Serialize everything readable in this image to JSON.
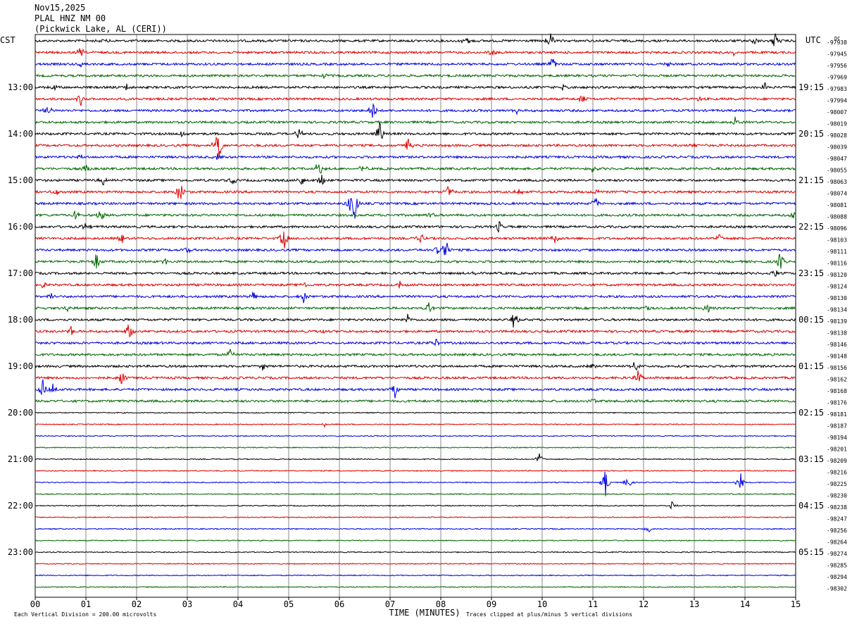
{
  "header": {
    "date": "Nov15,2025",
    "station": "PLAL HNZ NM 00",
    "location": "(Pickwick Lake, AL (CERI))"
  },
  "labels": {
    "left_timezone": "CST",
    "right_timezone": "UTC",
    "dc_label": "DC",
    "x_axis_title": "TIME (MINUTES)",
    "vertical_division": "Each Vertical Division =  200.00 microvolts",
    "clip_note": "Traces clipped at plus/minus 5 vertical divisions"
  },
  "chart_data": {
    "type": "line",
    "title": "PLAL HNZ NM 00",
    "xlabel": "TIME (MINUTES)",
    "xlim": [
      0,
      15
    ],
    "x_ticks": [
      "00",
      "01",
      "02",
      "03",
      "04",
      "05",
      "06",
      "07",
      "08",
      "09",
      "10",
      "11",
      "12",
      "13",
      "14",
      "15"
    ],
    "trace_colors": [
      "#000000",
      "#dd0000",
      "#0000dd",
      "#006600"
    ],
    "left_hour_labels": [
      "13:00",
      "14:00",
      "15:00",
      "16:00",
      "17:00",
      "18:00",
      "19:00",
      "20:00",
      "21:00",
      "22:00",
      "23:00"
    ],
    "right_hour_labels": [
      "19:15",
      "20:15",
      "21:15",
      "22:15",
      "23:15",
      "00:15",
      "01:15",
      "02:15",
      "03:15",
      "04:15",
      "05:15"
    ],
    "dc_offsets": [
      "-97938",
      "-97945",
      "-97956",
      "-97969",
      "-97983",
      "-97994",
      "-98007",
      "-98019",
      "-98028",
      "-98039",
      "-98047",
      "-98055",
      "-98063",
      "-98074",
      "-98081",
      "-98088",
      "-98096",
      "-98103",
      "-98111",
      "-98116",
      "-98120",
      "-98124",
      "-98130",
      "-98134",
      "-98139",
      "-98138",
      "-98146",
      "-98148",
      "-98156",
      "-98162",
      "-98168",
      "-98176",
      "-98181",
      "-98187",
      "-98194",
      "-98201",
      "-98209",
      "-98216",
      "-98225",
      "-98230",
      "-98238",
      "-98247",
      "-98256",
      "-98264",
      "-98274",
      "-98285",
      "-98294",
      "-98302"
    ],
    "events": [
      {
        "trace": 0,
        "minute": 10.15,
        "amp": 14
      },
      {
        "trace": 0,
        "minute": 14.6,
        "amp": 20
      },
      {
        "trace": 0,
        "minute": 1.35,
        "amp": 6
      },
      {
        "trace": 0,
        "minute": 8.5,
        "amp": 10
      },
      {
        "trace": 0,
        "minute": 14.2,
        "amp": 6
      },
      {
        "trace": 1,
        "minute": 0.9,
        "amp": 9
      },
      {
        "trace": 1,
        "minute": 9.0,
        "amp": 8
      },
      {
        "trace": 1,
        "minute": 13.8,
        "amp": 7
      },
      {
        "trace": 2,
        "minute": 0.9,
        "amp": 5
      },
      {
        "trace": 2,
        "minute": 12.5,
        "amp": 5
      },
      {
        "trace": 2,
        "minute": 10.2,
        "amp": 10
      },
      {
        "trace": 3,
        "minute": 5.7,
        "amp": 4
      },
      {
        "trace": 4,
        "minute": 0.4,
        "amp": 5
      },
      {
        "trace": 4,
        "minute": 1.8,
        "amp": 6
      },
      {
        "trace": 4,
        "minute": 10.4,
        "amp": 5
      },
      {
        "trace": 4,
        "minute": 14.4,
        "amp": 9
      },
      {
        "trace": 5,
        "minute": 0.9,
        "amp": 10
      },
      {
        "trace": 5,
        "minute": 10.8,
        "amp": 10
      },
      {
        "trace": 5,
        "minute": 13.1,
        "amp": 5
      },
      {
        "trace": 6,
        "minute": 0.25,
        "amp": 9
      },
      {
        "trace": 6,
        "minute": 6.65,
        "amp": 18
      },
      {
        "trace": 6,
        "minute": 9.5,
        "amp": 5
      },
      {
        "trace": 7,
        "minute": 13.8,
        "amp": 12
      },
      {
        "trace": 8,
        "minute": 2.9,
        "amp": 7
      },
      {
        "trace": 8,
        "minute": 5.2,
        "amp": 10
      },
      {
        "trace": 8,
        "minute": 6.8,
        "amp": 22
      },
      {
        "trace": 9,
        "minute": 3.6,
        "amp": 40
      },
      {
        "trace": 9,
        "minute": 7.35,
        "amp": 12
      },
      {
        "trace": 9,
        "minute": 13.0,
        "amp": 6
      },
      {
        "trace": 10,
        "minute": 3.6,
        "amp": 6
      },
      {
        "trace": 10,
        "minute": 0.9,
        "amp": 4
      },
      {
        "trace": 11,
        "minute": 1.0,
        "amp": 10
      },
      {
        "trace": 11,
        "minute": 5.6,
        "amp": 18
      },
      {
        "trace": 11,
        "minute": 6.45,
        "amp": 10
      },
      {
        "trace": 11,
        "minute": 11.0,
        "amp": 8
      },
      {
        "trace": 12,
        "minute": 1.35,
        "amp": 10
      },
      {
        "trace": 12,
        "minute": 3.9,
        "amp": 8
      },
      {
        "trace": 12,
        "minute": 5.25,
        "amp": 10
      },
      {
        "trace": 12,
        "minute": 5.65,
        "amp": 12
      },
      {
        "trace": 13,
        "minute": 0.4,
        "amp": 6
      },
      {
        "trace": 13,
        "minute": 2.85,
        "amp": 30
      },
      {
        "trace": 13,
        "minute": 8.15,
        "amp": 14
      },
      {
        "trace": 13,
        "minute": 9.55,
        "amp": 8
      },
      {
        "trace": 13,
        "minute": 11.1,
        "amp": 8
      },
      {
        "trace": 14,
        "minute": 6.2,
        "amp": 14
      },
      {
        "trace": 14,
        "minute": 6.3,
        "amp": 30
      },
      {
        "trace": 14,
        "minute": 11.05,
        "amp": 12
      },
      {
        "trace": 15,
        "minute": 0.8,
        "amp": 9
      },
      {
        "trace": 15,
        "minute": 1.3,
        "amp": 10
      },
      {
        "trace": 15,
        "minute": 7.8,
        "amp": 5
      },
      {
        "trace": 15,
        "minute": 14.95,
        "amp": 6
      },
      {
        "trace": 16,
        "minute": 1.0,
        "amp": 9
      },
      {
        "trace": 16,
        "minute": 9.15,
        "amp": 10
      },
      {
        "trace": 17,
        "minute": 1.7,
        "amp": 10
      },
      {
        "trace": 17,
        "minute": 4.9,
        "amp": 22
      },
      {
        "trace": 17,
        "minute": 7.6,
        "amp": 10
      },
      {
        "trace": 17,
        "minute": 10.25,
        "amp": 12
      },
      {
        "trace": 17,
        "minute": 13.5,
        "amp": 8
      },
      {
        "trace": 18,
        "minute": 3.0,
        "amp": 6
      },
      {
        "trace": 18,
        "minute": 8.1,
        "amp": 20
      },
      {
        "trace": 18,
        "minute": 7.95,
        "amp": 14
      },
      {
        "trace": 19,
        "minute": 1.2,
        "amp": 18
      },
      {
        "trace": 19,
        "minute": 2.55,
        "amp": 6
      },
      {
        "trace": 19,
        "minute": 14.7,
        "amp": 18
      },
      {
        "trace": 20,
        "minute": 8.65,
        "amp": 8
      },
      {
        "trace": 20,
        "minute": 14.6,
        "amp": 8
      },
      {
        "trace": 21,
        "minute": 0.15,
        "amp": 7
      },
      {
        "trace": 21,
        "minute": 7.2,
        "amp": 8
      },
      {
        "trace": 21,
        "minute": 5.3,
        "amp": 6
      },
      {
        "trace": 22,
        "minute": 0.3,
        "amp": 6
      },
      {
        "trace": 22,
        "minute": 4.3,
        "amp": 7
      },
      {
        "trace": 22,
        "minute": 5.3,
        "amp": 14
      },
      {
        "trace": 23,
        "minute": 0.65,
        "amp": 6
      },
      {
        "trace": 23,
        "minute": 7.75,
        "amp": 12
      },
      {
        "trace": 23,
        "minute": 12.05,
        "amp": 8
      },
      {
        "trace": 23,
        "minute": 13.25,
        "amp": 14
      },
      {
        "trace": 24,
        "minute": 7.35,
        "amp": 8
      },
      {
        "trace": 24,
        "minute": 9.45,
        "amp": 16
      },
      {
        "trace": 25,
        "minute": 0.7,
        "amp": 10
      },
      {
        "trace": 25,
        "minute": 1.85,
        "amp": 14
      },
      {
        "trace": 25,
        "minute": 5.7,
        "amp": 5
      },
      {
        "trace": 26,
        "minute": 7.9,
        "amp": 8
      },
      {
        "trace": 27,
        "minute": 3.85,
        "amp": 10
      },
      {
        "trace": 28,
        "minute": 4.5,
        "amp": 8
      },
      {
        "trace": 28,
        "minute": 11.0,
        "amp": 7
      },
      {
        "trace": 28,
        "minute": 11.85,
        "amp": 12
      },
      {
        "trace": 29,
        "minute": 1.7,
        "amp": 14
      },
      {
        "trace": 29,
        "minute": 11.9,
        "amp": 12
      },
      {
        "trace": 30,
        "minute": 0.15,
        "amp": 16
      },
      {
        "trace": 30,
        "minute": 0.35,
        "amp": 12
      },
      {
        "trace": 30,
        "minute": 7.1,
        "amp": 16
      },
      {
        "trace": 31,
        "minute": 11.0,
        "amp": 6
      },
      {
        "trace": 33,
        "minute": 5.7,
        "amp": 4
      },
      {
        "trace": 36,
        "minute": 9.95,
        "amp": 10
      },
      {
        "trace": 38,
        "minute": 11.25,
        "amp": 22
      },
      {
        "trace": 38,
        "minute": 11.7,
        "amp": 12
      },
      {
        "trace": 38,
        "minute": 13.9,
        "amp": 18
      },
      {
        "trace": 40,
        "minute": 12.55,
        "amp": 10
      },
      {
        "trace": 42,
        "minute": 12.1,
        "amp": 6
      }
    ]
  }
}
